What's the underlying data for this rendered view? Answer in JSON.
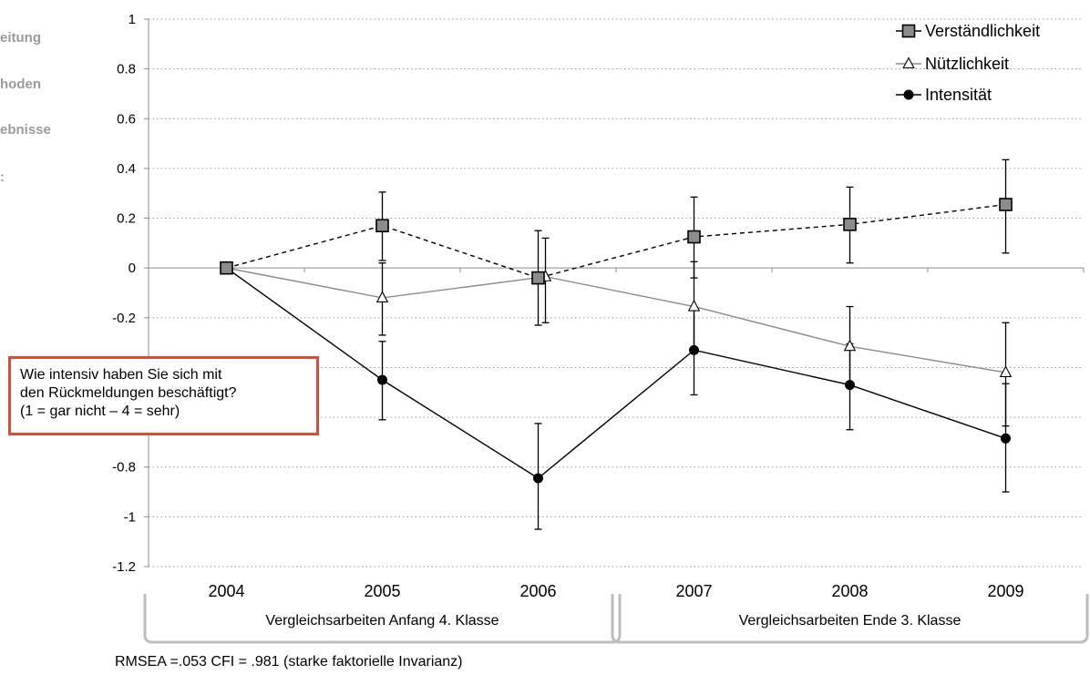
{
  "sidebar": {
    "items": [
      {
        "label": "eitung"
      },
      {
        "label": "hoden"
      },
      {
        "label": "ebnisse"
      },
      {
        "label": ":"
      }
    ]
  },
  "callout": {
    "lines": [
      "Wie intensiv haben Sie sich mit",
      "den Rückmeldungen beschäftigt?",
      "(1 = gar nicht – 4 = sehr)"
    ],
    "border_color": "#e8462e"
  },
  "footnote": "RMSEA =.053  CFI = .981 (starke faktorielle Invarianz)",
  "chart_data": {
    "type": "line",
    "categories": [
      "2004",
      "2005",
      "2006",
      "2007",
      "2008",
      "2009"
    ],
    "y_ticks": [
      "1",
      "0.8",
      "0.6",
      "0.4",
      "0.2",
      "0",
      "-0.2",
      "-0.4",
      "-0.6",
      "-0.8",
      "-1",
      "-1.2"
    ],
    "ylim": [
      -1.2,
      1
    ],
    "grid": "horizontal-dotted",
    "legend_position": "top-right",
    "series": [
      {
        "name": "Verständlichkeit",
        "marker": "square",
        "line": "dashed",
        "color": "#000000",
        "marker_fill": "#8c8c8c",
        "values": [
          0,
          0.17,
          -0.04,
          0.125,
          0.175,
          0.255
        ],
        "err_low": [
          0,
          0.03,
          -0.23,
          -0.04,
          0.02,
          0.06
        ],
        "err_high": [
          0,
          0.305,
          0.15,
          0.285,
          0.325,
          0.435
        ]
      },
      {
        "name": "Nützlichkeit",
        "marker": "triangle",
        "line": "solid",
        "color": "#8c8c8c",
        "marker_fill": "#ffffff",
        "values": [
          0,
          -0.12,
          -0.035,
          -0.155,
          -0.315,
          -0.42
        ],
        "err_low": [
          0,
          -0.27,
          -0.22,
          -0.325,
          -0.475,
          -0.635
        ],
        "err_high": [
          0,
          0.02,
          0.12,
          0.025,
          -0.155,
          -0.22
        ]
      },
      {
        "name": "Intensität",
        "marker": "circle",
        "line": "solid",
        "color": "#000000",
        "marker_fill": "#000000",
        "values": [
          0,
          -0.45,
          -0.845,
          -0.33,
          -0.47,
          -0.685
        ],
        "err_low": [
          0,
          -0.61,
          -1.05,
          -0.51,
          -0.65,
          -0.9
        ],
        "err_high": [
          0,
          -0.295,
          -0.625,
          -0.16,
          -0.305,
          -0.465
        ]
      }
    ],
    "groups": [
      {
        "label": "Vergleichsarbeiten Anfang 4. Klasse",
        "from": 0,
        "to": 2
      },
      {
        "label": "Vergleichsarbeiten Ende 3. Klasse",
        "from": 3,
        "to": 5
      }
    ]
  }
}
